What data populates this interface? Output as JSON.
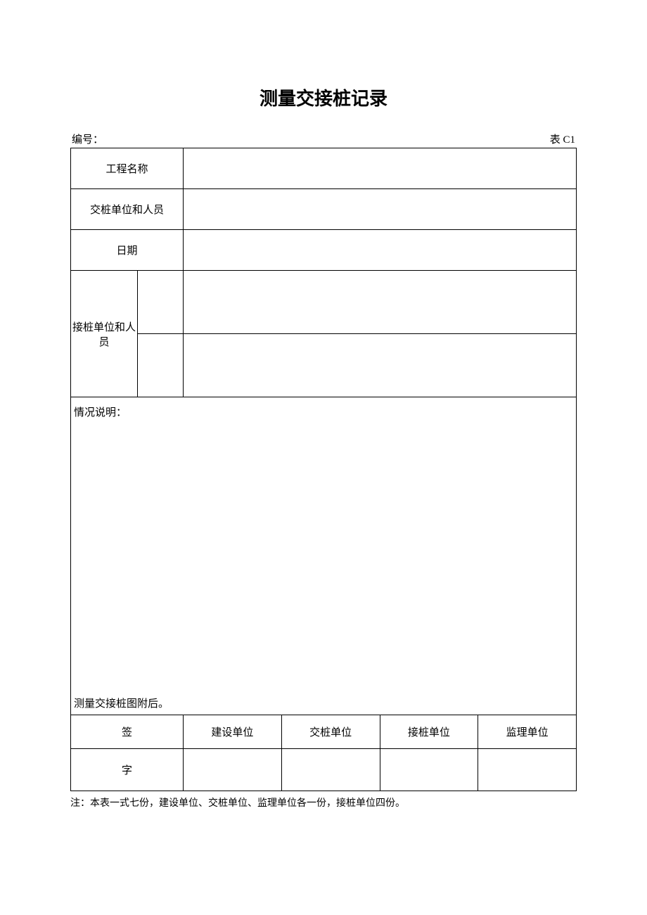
{
  "title": "测量交接桩记录",
  "header": {
    "number_label": "编号：",
    "table_code": "表 C1"
  },
  "rows": {
    "project_name_label": "工程名称",
    "handover_unit_label": "交桩单位和人员",
    "date_label": "日期",
    "receiver_unit_label": "接桩单位和人员"
  },
  "description": {
    "label": "情况说明：",
    "attachment_note": "测量交接桩图附后。"
  },
  "signatures": {
    "sign_char_1": "签",
    "sign_char_2": "字",
    "construction_unit": "建设单位",
    "handover_unit": "交桩单位",
    "receiver_unit": "接桩单位",
    "supervisor_unit": "监理单位"
  },
  "footer_note": "注：本表一式七份，建设单位、交桩单位、监理单位各一份，接桩单位四份。",
  "colors": {
    "text": "#000000",
    "border": "#000000",
    "background": "#ffffff"
  }
}
